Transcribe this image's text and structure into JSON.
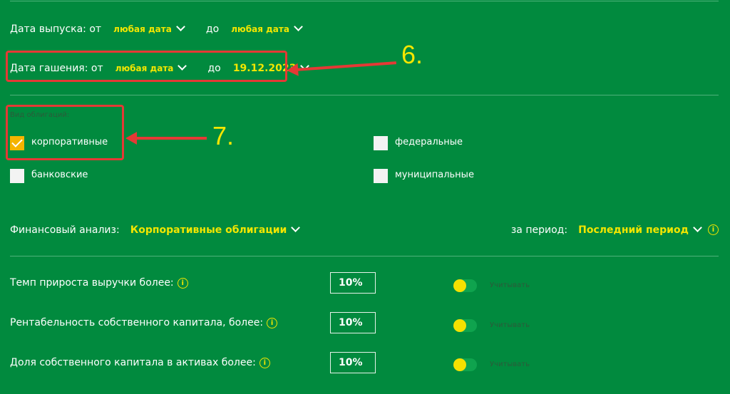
{
  "issue_date": {
    "label": "Дата выпуска: от",
    "from": "любая дата",
    "to_label": "до",
    "to": "любая дата"
  },
  "maturity_date": {
    "label": "Дата гашения: от",
    "from": "любая дата",
    "to_label": "до",
    "to": "19.12.2023"
  },
  "bond_type": {
    "label": "Вид облигаций:",
    "options": [
      {
        "label": "корпоративные",
        "checked": true
      },
      {
        "label": "федеральные",
        "checked": false
      },
      {
        "label": "банковские",
        "checked": false
      },
      {
        "label": "муниципальные",
        "checked": false
      }
    ]
  },
  "financial": {
    "label": "Финансовый анализ:",
    "value": "Корпоративные облигации",
    "period_label": "за период:",
    "period_value": "Последний период"
  },
  "criteria": [
    {
      "label": "Темп прироста выручки более:",
      "value": "10%",
      "toggle_label": "Учитывать",
      "toggle_on": false
    },
    {
      "label": "Рентабельность собственного капитала, более:",
      "value": "10%",
      "toggle_label": "Учитывать",
      "toggle_on": false
    },
    {
      "label": "Доля собственного капитала в активах более:",
      "value": "10%",
      "toggle_label": "Учитывать",
      "toggle_on": false
    }
  ],
  "annotations": {
    "first": "6.",
    "second": "7."
  },
  "colors": {
    "background": "#018a3e",
    "accent": "#f2e600",
    "annotation": "#e53935",
    "checkbox_checked": "#f5b400"
  }
}
